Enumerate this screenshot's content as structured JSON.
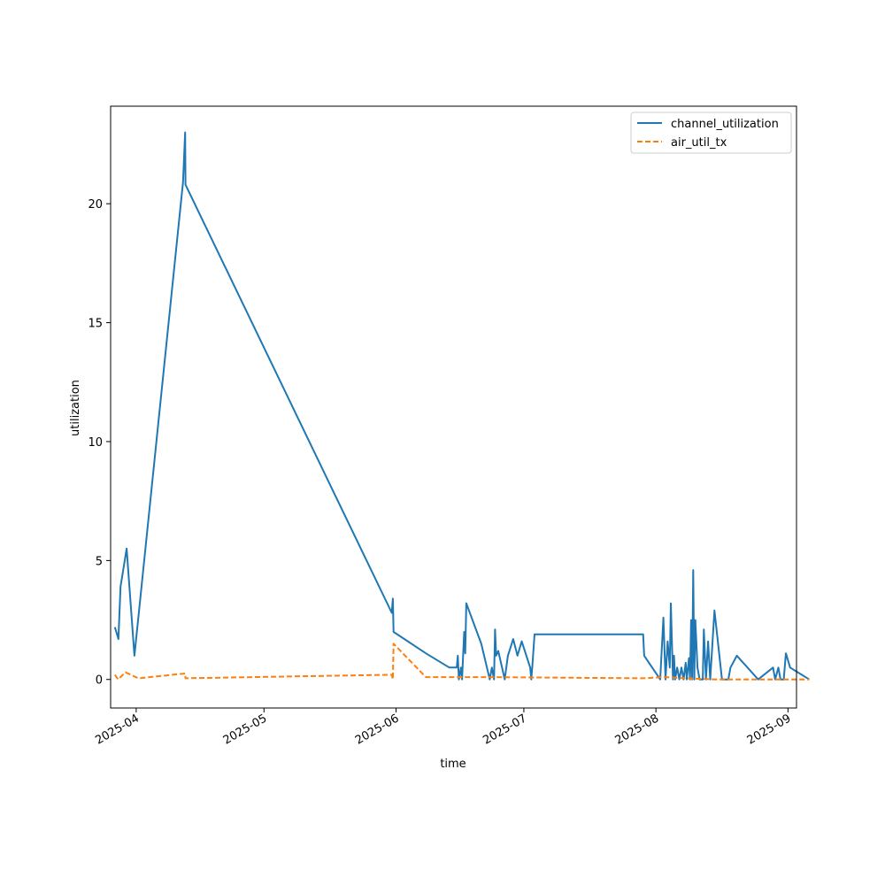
{
  "chart_data": {
    "type": "line",
    "title": "",
    "xlabel": "time",
    "ylabel": "utilization",
    "x_ticks": [
      "2025-04",
      "2025-05",
      "2025-06",
      "2025-07",
      "2025-08",
      "2025-09"
    ],
    "y_ticks": [
      0,
      5,
      10,
      15,
      20
    ],
    "xlim": [
      "2025-03-26",
      "2025-09-03"
    ],
    "ylim": [
      -1.2,
      24.1
    ],
    "grid": false,
    "legend_position": "top-right",
    "series": [
      {
        "name": "channel_utilization",
        "color": "#1f77b4",
        "style": "solid",
        "points": [
          [
            "2025-03-27T00:00",
            2.2
          ],
          [
            "2025-03-27T20:00",
            1.7
          ],
          [
            "2025-03-28T08:00",
            3.9
          ],
          [
            "2025-03-29T18:00",
            5.5
          ],
          [
            "2025-03-31T14:00",
            1.0
          ],
          [
            "2025-04-12T00:00",
            20.9
          ],
          [
            "2025-04-12T12:00",
            23.0
          ],
          [
            "2025-04-12T14:00",
            20.8
          ],
          [
            "2025-05-31T00:00",
            2.8
          ],
          [
            "2025-05-31T06:00",
            3.4
          ],
          [
            "2025-05-31T10:00",
            2.0
          ],
          [
            "2025-06-08T00:00",
            1.1
          ],
          [
            "2025-06-13T12:00",
            0.5
          ],
          [
            "2025-06-15T06:00",
            0.5
          ],
          [
            "2025-06-15T12:00",
            1.0
          ],
          [
            "2025-06-15T18:00",
            0.0
          ],
          [
            "2025-06-16T06:00",
            0.5
          ],
          [
            "2025-06-16T12:00",
            0.0
          ],
          [
            "2025-06-17T00:00",
            2.0
          ],
          [
            "2025-06-17T06:00",
            1.1
          ],
          [
            "2025-06-17T12:00",
            3.2
          ],
          [
            "2025-06-21T00:00",
            1.5
          ],
          [
            "2025-06-23T00:00",
            0.0
          ],
          [
            "2025-06-23T12:00",
            0.5
          ],
          [
            "2025-06-24T00:00",
            0.0
          ],
          [
            "2025-06-24T06:00",
            2.1
          ],
          [
            "2025-06-24T12:00",
            1.0
          ],
          [
            "2025-06-25T00:00",
            1.2
          ],
          [
            "2025-06-26T00:00",
            0.4
          ],
          [
            "2025-06-26T12:00",
            0.0
          ],
          [
            "2025-06-27T06:00",
            1.0
          ],
          [
            "2025-06-28T12:00",
            1.7
          ],
          [
            "2025-06-29T12:00",
            1.0
          ],
          [
            "2025-06-30T12:00",
            1.6
          ],
          [
            "2025-07-02T12:00",
            0.5
          ],
          [
            "2025-07-02T18:00",
            0.0
          ],
          [
            "2025-07-03T00:00",
            0.6
          ],
          [
            "2025-07-03T12:00",
            1.9
          ],
          [
            "2025-07-29T00:00",
            1.9
          ],
          [
            "2025-07-29T06:00",
            1.0
          ],
          [
            "2025-08-02T00:00",
            0.0
          ],
          [
            "2025-08-02T18:00",
            2.6
          ],
          [
            "2025-08-03T06:00",
            0.0
          ],
          [
            "2025-08-03T18:00",
            1.6
          ],
          [
            "2025-08-04T06:00",
            0.5
          ],
          [
            "2025-08-04T12:00",
            3.2
          ],
          [
            "2025-08-05T00:00",
            0.0
          ],
          [
            "2025-08-05T06:00",
            1.0
          ],
          [
            "2025-08-05T12:00",
            0.0
          ],
          [
            "2025-08-06T00:00",
            0.5
          ],
          [
            "2025-08-06T12:00",
            0.0
          ],
          [
            "2025-08-07T00:00",
            0.5
          ],
          [
            "2025-08-07T12:00",
            0.0
          ],
          [
            "2025-08-08T00:00",
            0.7
          ],
          [
            "2025-08-08T06:00",
            0.0
          ],
          [
            "2025-08-08T18:00",
            0.9
          ],
          [
            "2025-08-09T00:00",
            0.0
          ],
          [
            "2025-08-09T06:00",
            2.5
          ],
          [
            "2025-08-09T12:00",
            0.0
          ],
          [
            "2025-08-09T18:00",
            4.6
          ],
          [
            "2025-08-10T00:00",
            0.0
          ],
          [
            "2025-08-10T06:00",
            2.5
          ],
          [
            "2025-08-10T18:00",
            0.5
          ],
          [
            "2025-08-11T06:00",
            0.0
          ],
          [
            "2025-08-12T00:00",
            0.0
          ],
          [
            "2025-08-12T06:00",
            2.1
          ],
          [
            "2025-08-12T18:00",
            0.0
          ],
          [
            "2025-08-13T06:00",
            1.6
          ],
          [
            "2025-08-13T18:00",
            0.0
          ],
          [
            "2025-08-14T18:00",
            2.9
          ],
          [
            "2025-08-16T12:00",
            0.0
          ],
          [
            "2025-08-18T00:00",
            0.0
          ],
          [
            "2025-08-18T12:00",
            0.5
          ],
          [
            "2025-08-20T00:00",
            1.0
          ],
          [
            "2025-08-25T00:00",
            0.0
          ],
          [
            "2025-08-28T12:00",
            0.5
          ],
          [
            "2025-08-29T00:00",
            0.0
          ],
          [
            "2025-08-29T18:00",
            0.5
          ],
          [
            "2025-08-30T06:00",
            0.0
          ],
          [
            "2025-08-31T00:00",
            0.0
          ],
          [
            "2025-08-31T12:00",
            1.1
          ],
          [
            "2025-09-01T12:00",
            0.5
          ],
          [
            "2025-09-06T00:00",
            0.0
          ]
        ]
      },
      {
        "name": "air_util_tx",
        "color": "#ff7f0e",
        "style": "dashed",
        "points": [
          [
            "2025-03-27T00:00",
            0.2
          ],
          [
            "2025-03-27T18:00",
            0.0
          ],
          [
            "2025-03-29T12:00",
            0.3
          ],
          [
            "2025-04-01T12:00",
            0.05
          ],
          [
            "2025-04-12T12:00",
            0.25
          ],
          [
            "2025-04-12T14:00",
            0.05
          ],
          [
            "2025-05-31T00:00",
            0.2
          ],
          [
            "2025-05-31T06:00",
            0.0
          ],
          [
            "2025-05-31T10:00",
            1.5
          ],
          [
            "2025-06-08T00:00",
            0.1
          ],
          [
            "2025-06-23T00:00",
            0.1
          ],
          [
            "2025-07-29T00:00",
            0.05
          ],
          [
            "2025-08-03T00:00",
            0.1
          ],
          [
            "2025-08-08T00:00",
            0.05
          ],
          [
            "2025-08-15T00:00",
            0.0
          ],
          [
            "2025-09-06T00:00",
            0.0
          ]
        ]
      }
    ]
  }
}
